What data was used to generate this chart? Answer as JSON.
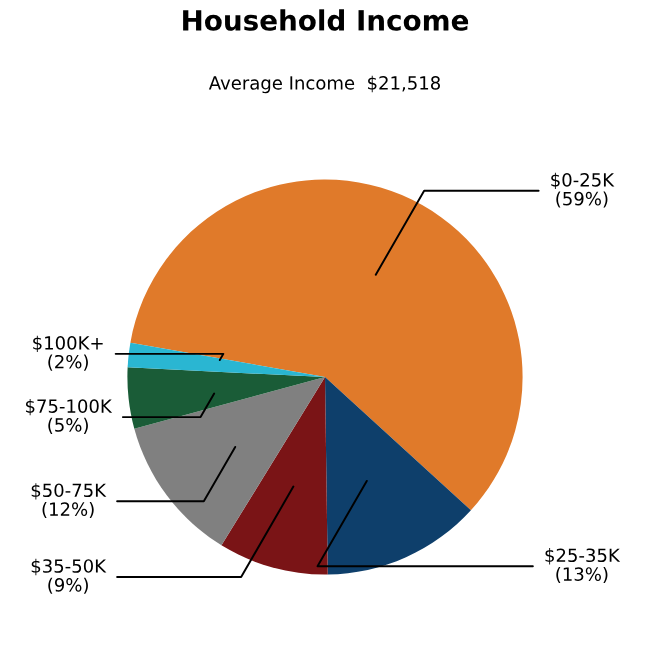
{
  "chart_data": {
    "type": "pie",
    "title": "Household Income",
    "subtitle": "Average Income  $21,518",
    "categories": [
      "$0-25K",
      "$25-35K",
      "$35-50K",
      "$50-75K",
      "$75-100K",
      "$100K+"
    ],
    "values": [
      59,
      13,
      9,
      12,
      5,
      2
    ],
    "value_labels": [
      "(59%)",
      "(13%)",
      "(9%)",
      "(12%)",
      "(5%)",
      "(2%)"
    ],
    "colors": [
      "#e07a2a",
      "#0e3f6b",
      "#7a1416",
      "#808080",
      "#1a5c37",
      "#2ab6d2"
    ],
    "legend": false
  }
}
